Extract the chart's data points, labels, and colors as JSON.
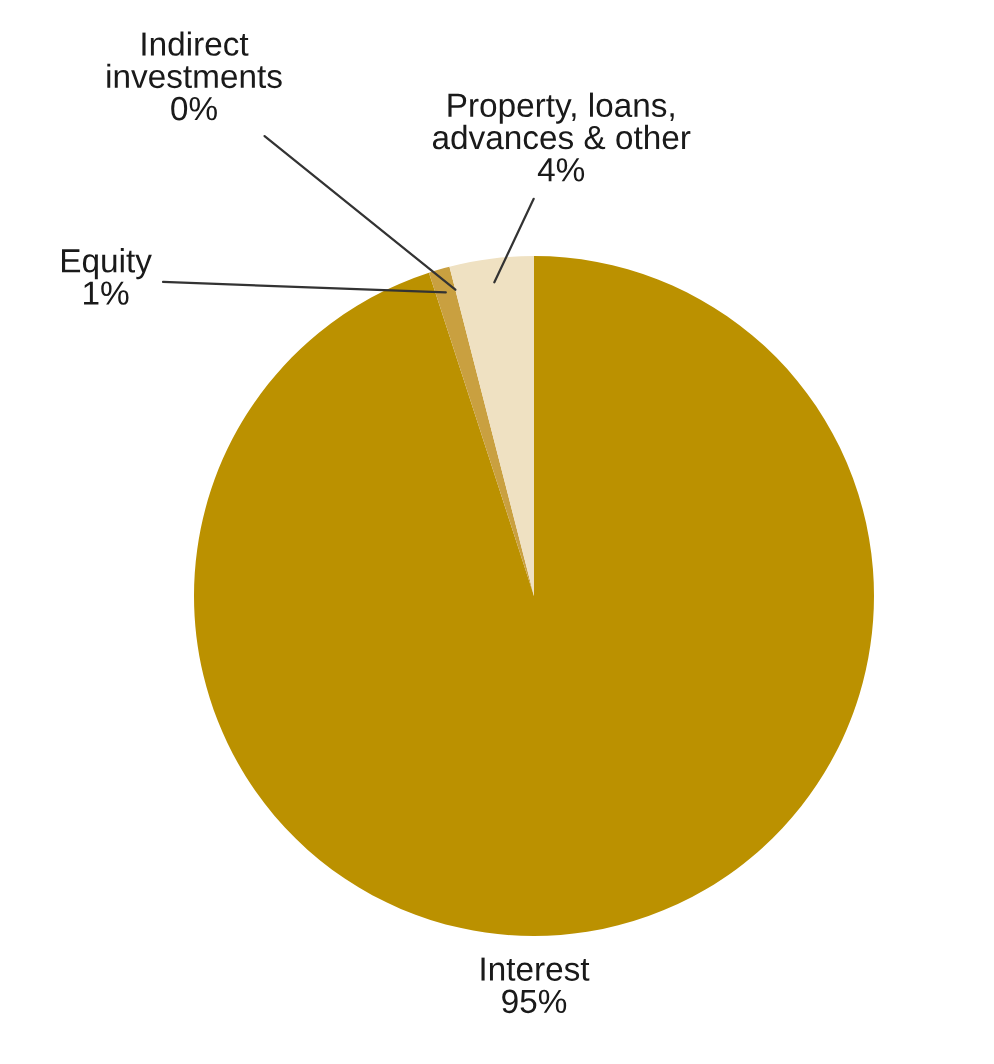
{
  "chart_data": {
    "type": "pie",
    "categories": [
      "Interest",
      "Equity",
      "Indirect\ninvestments",
      "Property, loans,\nadvances & other"
    ],
    "values": [
      95,
      1,
      0,
      4
    ],
    "colors": [
      "#bb9100",
      "#c9a040",
      "#dcc07a",
      "#efe1c2"
    ],
    "value_labels": [
      "95%",
      "1%",
      "0%",
      "4%"
    ]
  }
}
